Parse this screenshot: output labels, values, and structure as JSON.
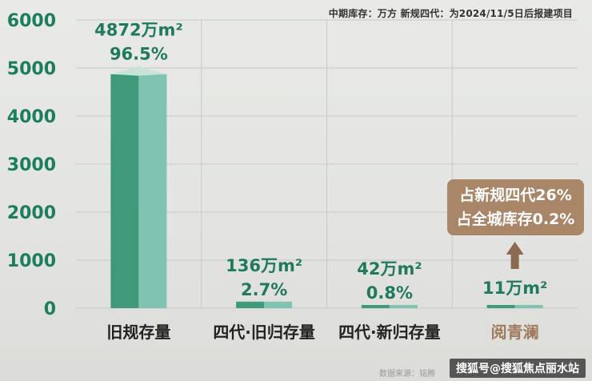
{
  "note": "中期库存：万方  新规四代：为2024/11/5日后报建项目",
  "chart_data": {
    "type": "bar",
    "categories": [
      "旧规存量",
      "四代·旧归存量",
      "四代·新归存量",
      "阅青澜"
    ],
    "values": [
      4872,
      136,
      42,
      11
    ],
    "value_labels": [
      "4872万m²",
      "136万m²",
      "42万m²",
      "11万m²"
    ],
    "percent_labels": [
      "96.5%",
      "2.7%",
      "0.8%",
      ""
    ],
    "ylim": [
      0,
      6000
    ],
    "yticks": [
      "0",
      "1000",
      "2000",
      "3000",
      "4000",
      "5000",
      "6000"
    ],
    "grid": true,
    "colors": {
      "bar_dark": "#3f9a7c",
      "bar_light": "#80c3b0",
      "bar_top": "#c8e3d8",
      "axis_text": "#1c7d5f",
      "highlight": "#a07a5c"
    }
  },
  "callout": {
    "line1": "占新规四代26%",
    "line2": "占全城库存0.2%"
  },
  "source": "数据来源：铭腾",
  "watermark": "搜狐号@搜狐焦点丽水站"
}
